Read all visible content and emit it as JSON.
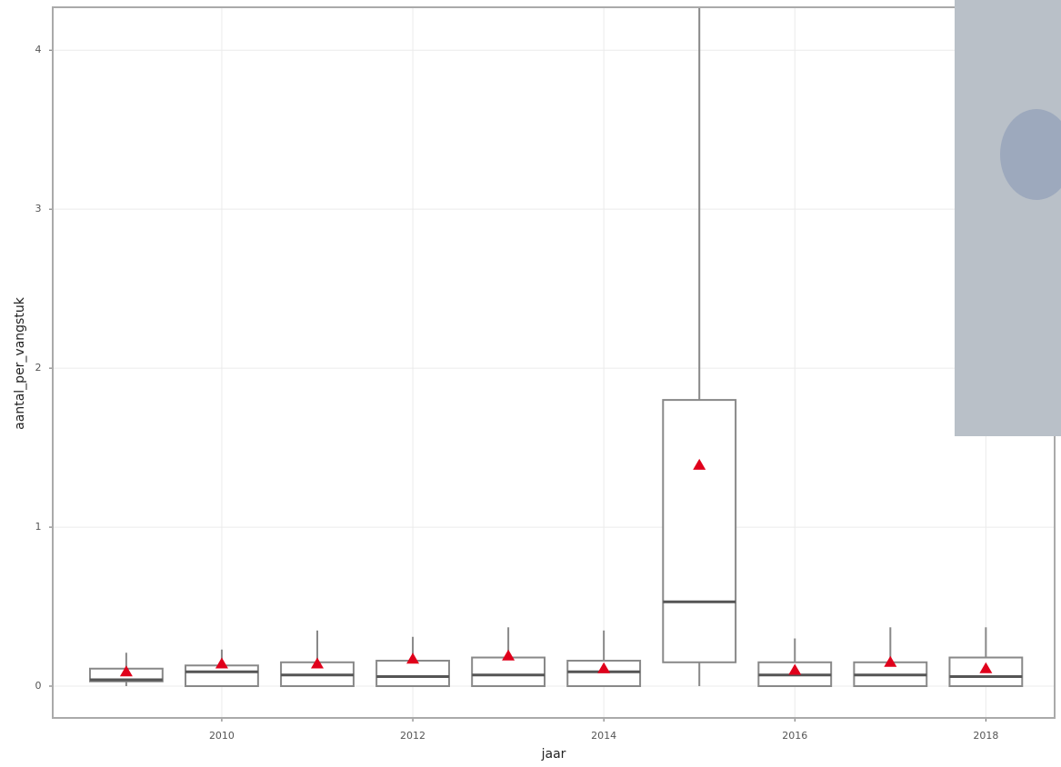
{
  "chart_data": {
    "type": "box",
    "xlabel": "jaar",
    "ylabel": "aantal_per_vangstuk",
    "x": [
      2009,
      2010,
      2011,
      2012,
      2013,
      2014,
      2015,
      2016,
      2017,
      2018
    ],
    "min": [
      0,
      0,
      0,
      0,
      0,
      0,
      0,
      0,
      0,
      0
    ],
    "q1": [
      0.03,
      0,
      0,
      0,
      0,
      0,
      0.15,
      0,
      0,
      0
    ],
    "median": [
      0.04,
      0.09,
      0.07,
      0.06,
      0.07,
      0.09,
      0.53,
      0.07,
      0.07,
      0.06
    ],
    "q3": [
      0.11,
      0.13,
      0.15,
      0.16,
      0.18,
      0.16,
      1.8,
      0.15,
      0.15,
      0.18
    ],
    "max": [
      0.21,
      0.23,
      0.35,
      0.31,
      0.37,
      0.35,
      4.27,
      0.3,
      0.37,
      0.37
    ],
    "mean": [
      0.09,
      0.14,
      0.14,
      0.17,
      0.19,
      0.11,
      1.39,
      0.1,
      0.15,
      0.11
    ],
    "box_color": "#888888",
    "mean_color": "#e0001b",
    "xlim": [
      2008.23,
      2018.72
    ],
    "xticks": [
      2010,
      2012,
      2014,
      2016,
      2018
    ],
    "ylim": [
      -0.2,
      4.27
    ],
    "yticks": [
      0,
      1,
      2,
      3,
      4
    ],
    "grid": true
  }
}
